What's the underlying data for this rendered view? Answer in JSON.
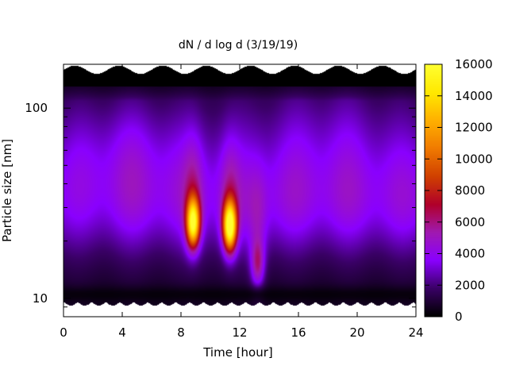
{
  "chart_data": {
    "type": "heatmap",
    "title": "dN / d log d (3/19/19)",
    "xlabel": "Time [hour]",
    "ylabel": "Particle size [nm]",
    "xlim": [
      0,
      24
    ],
    "ylim_nm": [
      8,
      170
    ],
    "yscale": "log",
    "x_ticks": [
      0,
      4,
      8,
      12,
      16,
      20,
      24
    ],
    "x_tick_labels": [
      "0",
      "4",
      "8",
      "12",
      "16",
      "20",
      "24"
    ],
    "y_ticks": [
      10,
      100
    ],
    "y_tick_labels": [
      "10",
      "100"
    ],
    "colorbar": {
      "range": [
        0,
        16000
      ],
      "ticks": [
        0,
        2000,
        4000,
        6000,
        8000,
        10000,
        12000,
        14000,
        16000
      ],
      "tick_labels": [
        "0",
        "2000",
        "4000",
        "6000",
        "8000",
        "10000",
        "12000",
        "14000",
        "16000"
      ],
      "colormap": [
        "#000000",
        "#3a0066",
        "#8a00ff",
        "#a01ab0",
        "#b0002a",
        "#d04000",
        "#f07a00",
        "#ffb000",
        "#ffe800",
        "#ffff30"
      ]
    },
    "features": [
      {
        "time_hour": 8.8,
        "size_nm": 25,
        "peak": 12500
      },
      {
        "time_hour": 11.3,
        "size_nm": 24,
        "peak": 14000
      },
      {
        "time_hour": 13.2,
        "size_nm": 15,
        "peak": 3800
      }
    ]
  }
}
